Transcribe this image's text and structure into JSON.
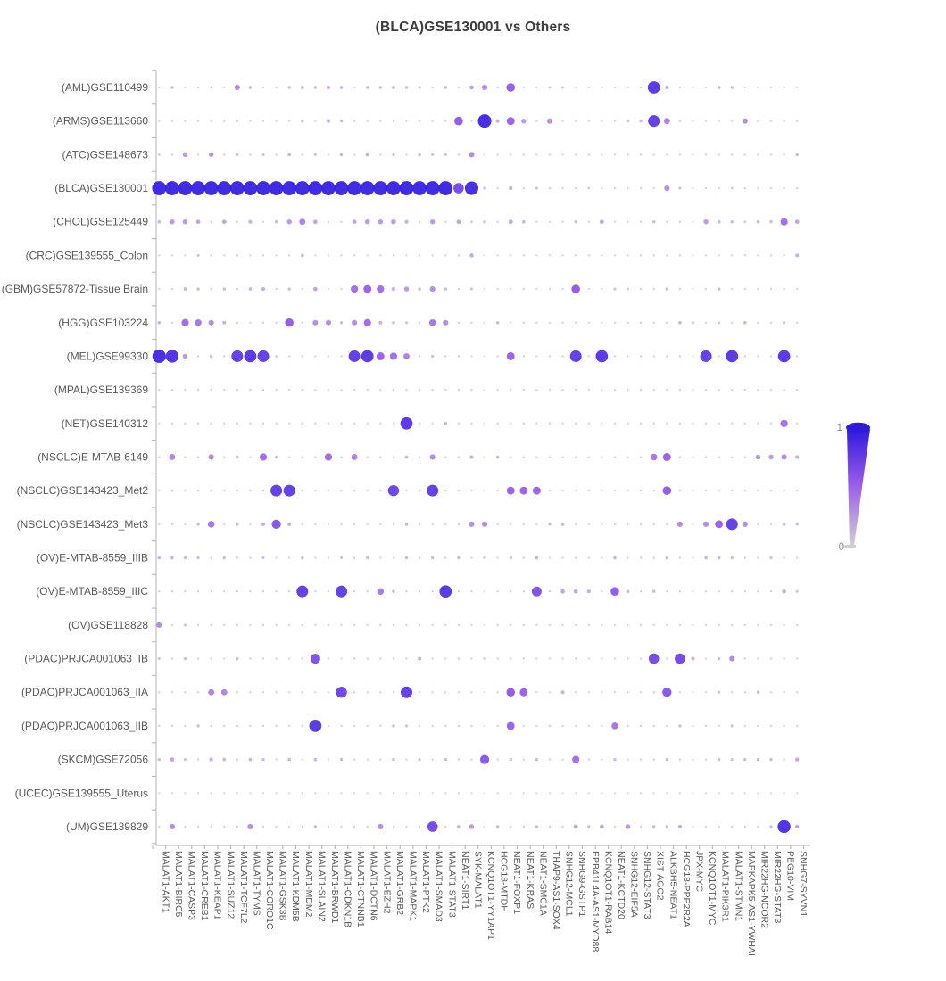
{
  "title": "(BLCA)GSE130001 vs Others",
  "legend": {
    "max_label": "1",
    "min_label": "0"
  },
  "chart_data": {
    "type": "scatter",
    "subtype": "bubble-matrix",
    "title": "(BLCA)GSE130001 vs Others",
    "xlabel": "",
    "ylabel": "",
    "value_range": [
      0,
      1
    ],
    "legend_position": "right",
    "grid": false,
    "highlighted_y": "(BLCA)GSE130001",
    "highlight_color": "#e32222",
    "colors": {
      "scale_low": "#d3cdd9",
      "scale_mid": "#9658e8",
      "scale_high": "#301ade",
      "axis": "#b0b0b0",
      "label": "#595959",
      "title": "#3d3d3d"
    },
    "y_categories": [
      "(AML)GSE110499",
      "(ARMS)GSE113660",
      "(ATC)GSE148673",
      "(BLCA)GSE130001",
      "(CHOL)GSE125449",
      "(CRC)GSE139555_Colon",
      "(GBM)GSE57872-Tissue Brain",
      "(HGG)GSE103224",
      "(MEL)GSE99330",
      "(MPAL)GSE139369",
      "(NET)GSE140312",
      "(NSCLC)E-MTAB-6149",
      "(NSCLC)GSE143423_Met2",
      "(NSCLC)GSE143423_Met3",
      "(OV)E-MTAB-8559_IIIB",
      "(OV)E-MTAB-8559_IIIC",
      "(OV)GSE118828",
      "(PDAC)PRJCA001063_IB",
      "(PDAC)PRJCA001063_IIA",
      "(PDAC)PRJCA001063_IIB",
      "(SKCM)GSE72056",
      "(UCEC)GSE139555_Uterus",
      "(UM)GSE139829"
    ],
    "x_categories": [
      "MALAT1-AKT1",
      "MALAT1-BIRC5",
      "MALAT1-CASP3",
      "MALAT1-CREB1",
      "MALAT1-KEAP1",
      "MALAT1-SUZ12",
      "MALAT1-TCF7L2",
      "MALAT1-TYMS",
      "MALAT1-CORO1C",
      "MALAT1-GSK3B",
      "MALAT1-KDM5B",
      "MALAT1-MDM2",
      "MALAT1-SLAIN2",
      "MALAT1-BRWD1",
      "MALAT1-CDKN1B",
      "MALAT1-CTNNB1",
      "MALAT1-DCTN6",
      "MALAT1-EZH2",
      "MALAT1-GRB2",
      "MALAT1-MAPK1",
      "MALAT1-PTK2",
      "MALAT1-SMAD3",
      "MALAT1-STAT3",
      "NEAT1-SIRT1",
      "SYK-MALAT1",
      "KCNQ1OT1-YY1AP1",
      "HCG18-MTDH",
      "NEAT1-FOXP1",
      "NEAT1-KRAS",
      "NEAT1-SMC1A",
      "THAP9-AS1-SOX4",
      "SNHG12-MCL1",
      "SNHG9-GSTP1",
      "EPB41L4A-AS1-MYD88",
      "KCNQ1OT1-RAB14",
      "NEAT1-KCTD20",
      "SNHG12-EIF5A",
      "SNHG12-STAT3",
      "XIST-AGO2",
      "ALKBH5-NEAT1",
      "HCG18-PPP2R2A",
      "JPX-MYC",
      "KCNQ1OT1-MYC",
      "MALAT1-PIK3R1",
      "MALAT1-STMN1",
      "MAPKAPK5-AS1-YWHAI",
      "MIR22HG-NCOR2",
      "MIR22HG-STAT3",
      "PEG10-VIM",
      "SNHG7-SYVN1"
    ],
    "values": [
      [
        0.02,
        0.1,
        0.02,
        0.02,
        0.05,
        0.02,
        0.3,
        0.1,
        0.02,
        0.02,
        0.1,
        0.12,
        0.1,
        0.15,
        0.12,
        0.02,
        0.1,
        0.1,
        0.12,
        0.1,
        0.08,
        0.02,
        0.1,
        0.02,
        0.2,
        0.3,
        0.02,
        0.55,
        0.02,
        0.02,
        0.08,
        0.08,
        0.02,
        0.02,
        0.02,
        0.02,
        0.02,
        0.02,
        0.85,
        0.15,
        0.02,
        0.02,
        0.02,
        0.12,
        0.1,
        0.02,
        0.02,
        0.02,
        0.02,
        0.02
      ],
      [
        0.02,
        0.02,
        0.02,
        0.02,
        0.02,
        0.02,
        0.02,
        0.02,
        0.02,
        0.02,
        0.02,
        0.08,
        0.02,
        0.15,
        0.1,
        0.02,
        0.02,
        0.02,
        0.02,
        0.02,
        0.02,
        0.02,
        0.02,
        0.55,
        0.02,
        0.95,
        0.15,
        0.5,
        0.25,
        0.02,
        0.3,
        0.02,
        0.02,
        0.02,
        0.02,
        0.02,
        0.08,
        0.1,
        0.8,
        0.35,
        0.02,
        0.02,
        0.02,
        0.02,
        0.02,
        0.3,
        0.02,
        0.02,
        0.02,
        0.02
      ],
      [
        0.05,
        0.02,
        0.25,
        0.02,
        0.25,
        0.02,
        0.08,
        0.02,
        0.08,
        0.02,
        0.12,
        0.02,
        0.08,
        0.02,
        0.12,
        0.02,
        0.15,
        0.02,
        0.08,
        0.02,
        0.1,
        0.08,
        0.08,
        0.02,
        0.3,
        0.02,
        0.02,
        0.02,
        0.02,
        0.02,
        0.02,
        0.02,
        0.02,
        0.02,
        0.02,
        0.02,
        0.02,
        0.02,
        0.02,
        0.02,
        0.02,
        0.02,
        0.02,
        0.02,
        0.02,
        0.02,
        0.02,
        0.02,
        0.02,
        0.1
      ],
      [
        1,
        1,
        1,
        1,
        1,
        1,
        1,
        1,
        1,
        1,
        1,
        1,
        1,
        1,
        1,
        1,
        1,
        1,
        1,
        1,
        1,
        1,
        1,
        0.7,
        0.95,
        0.1,
        0.02,
        0.15,
        0.02,
        0.08,
        0.02,
        0.02,
        0.02,
        0.05,
        0.02,
        0.02,
        0.02,
        0.02,
        0.02,
        0.3,
        0.08,
        0.02,
        0.02,
        0.02,
        0.05,
        0.02,
        0.02,
        0.02,
        0.02,
        0.02
      ],
      [
        0.12,
        0.25,
        0.25,
        0.2,
        0.02,
        0.2,
        0.02,
        0.15,
        0.02,
        0.1,
        0.25,
        0.35,
        0.2,
        0.02,
        0.02,
        0.2,
        0.25,
        0.25,
        0.25,
        0.15,
        0.02,
        0.25,
        0.02,
        0.2,
        0.05,
        0.1,
        0.02,
        0.2,
        0.12,
        0.02,
        0.02,
        0.02,
        0.1,
        0.02,
        0.2,
        0.02,
        0.02,
        0.02,
        0.1,
        0.02,
        0.02,
        0.02,
        0.25,
        0.12,
        0.1,
        0.05,
        0.1,
        0.1,
        0.45,
        0.2
      ],
      [
        0.02,
        0.02,
        0.02,
        0.08,
        0.02,
        0.02,
        0.02,
        0.02,
        0.02,
        0.02,
        0.02,
        0.12,
        0.02,
        0.02,
        0.02,
        0.02,
        0.02,
        0.02,
        0.02,
        0.02,
        0.02,
        0.02,
        0.02,
        0.02,
        0.18,
        0.02,
        0.02,
        0.02,
        0.02,
        0.02,
        0.02,
        0.02,
        0.02,
        0.02,
        0.02,
        0.02,
        0.02,
        0.02,
        0.02,
        0.02,
        0.02,
        0.02,
        0.02,
        0.02,
        0.02,
        0.02,
        0.02,
        0.02,
        0.02,
        0.15
      ],
      [
        0.02,
        0.02,
        0.12,
        0.1,
        0.02,
        0.1,
        0.02,
        0.12,
        0.15,
        0.02,
        0.1,
        0.02,
        0.2,
        0.02,
        0.02,
        0.45,
        0.5,
        0.45,
        0.15,
        0.25,
        0.1,
        0.3,
        0.1,
        0.02,
        0.08,
        0.02,
        0.02,
        0.02,
        0.02,
        0.02,
        0.02,
        0.02,
        0.55,
        0.02,
        0.02,
        0.08,
        0.05,
        0.02,
        0.02,
        0.1,
        0.02,
        0.02,
        0.02,
        0.1,
        0.02,
        0.02,
        0.02,
        0.02,
        0.02,
        0.02
      ],
      [
        0.12,
        0.02,
        0.45,
        0.4,
        0.3,
        0.15,
        0.02,
        0.02,
        0.02,
        0.02,
        0.55,
        0.02,
        0.3,
        0.3,
        0.1,
        0.3,
        0.45,
        0.15,
        0.1,
        0.08,
        0.02,
        0.4,
        0.3,
        0.02,
        0.02,
        0.02,
        0.1,
        0.02,
        0.02,
        0.02,
        0.02,
        0.02,
        0.02,
        0.02,
        0.02,
        0.02,
        0.02,
        0.02,
        0.02,
        0.02,
        0.12,
        0.08,
        0.02,
        0.05,
        0.02,
        0.12,
        0.02,
        0.02,
        0.1,
        0.02
      ],
      [
        0.95,
        0.9,
        0.25,
        0.02,
        0.1,
        0.02,
        0.8,
        0.85,
        0.8,
        0.05,
        0.02,
        0.02,
        0.02,
        0.02,
        0.02,
        0.8,
        0.85,
        0.5,
        0.45,
        0.35,
        0.02,
        0.08,
        0.02,
        0.02,
        0.02,
        0.02,
        0.02,
        0.5,
        0.02,
        0.02,
        0.02,
        0.02,
        0.8,
        0.02,
        0.85,
        0.02,
        0.02,
        0.02,
        0.02,
        0.02,
        0.02,
        0.02,
        0.8,
        0.02,
        0.85,
        0.02,
        0.02,
        0.02,
        0.85,
        0.02
      ],
      [
        0.02,
        0.02,
        0.02,
        0.02,
        0.02,
        0.02,
        0.02,
        0.02,
        0.02,
        0.02,
        0.02,
        0.02,
        0.02,
        0.02,
        0.02,
        0.02,
        0.02,
        0.02,
        0.02,
        0.02,
        0.02,
        0.02,
        0.02,
        0.02,
        0.02,
        0.02,
        0.02,
        0.02,
        0.02,
        0.02,
        0.02,
        0.02,
        0.02,
        0.02,
        0.02,
        0.02,
        0.02,
        0.02,
        0.02,
        0.02,
        0.02,
        0.02,
        0.02,
        0.02,
        0.02,
        0.02,
        0.02,
        0.02,
        0.02,
        0.02
      ],
      [
        0.02,
        0.02,
        0.02,
        0.02,
        0.02,
        0.02,
        0.02,
        0.02,
        0.02,
        0.02,
        0.02,
        0.02,
        0.02,
        0.02,
        0.02,
        0.02,
        0.02,
        0.02,
        0.02,
        0.85,
        0.02,
        0.02,
        0.12,
        0.02,
        0.02,
        0.02,
        0.02,
        0.02,
        0.02,
        0.02,
        0.02,
        0.02,
        0.02,
        0.02,
        0.02,
        0.02,
        0.02,
        0.02,
        0.02,
        0.02,
        0.02,
        0.02,
        0.02,
        0.02,
        0.02,
        0.02,
        0.02,
        0.02,
        0.45,
        0.02
      ],
      [
        0.02,
        0.35,
        0.02,
        0.02,
        0.3,
        0.02,
        0.08,
        0.02,
        0.45,
        0.08,
        0.02,
        0.02,
        0.02,
        0.45,
        0.02,
        0.35,
        0.02,
        0.02,
        0.02,
        0.12,
        0.02,
        0.3,
        0.02,
        0.02,
        0.15,
        0.02,
        0.1,
        0.02,
        0.02,
        0.02,
        0.02,
        0.02,
        0.02,
        0.02,
        0.02,
        0.02,
        0.02,
        0.02,
        0.4,
        0.5,
        0.02,
        0.02,
        0.02,
        0.02,
        0.02,
        0.02,
        0.25,
        0.25,
        0.3,
        0.15
      ],
      [
        0.02,
        0.05,
        0.02,
        0.02,
        0.02,
        0.02,
        0.02,
        0.02,
        0.02,
        0.8,
        0.8,
        0.02,
        0.02,
        0.02,
        0.02,
        0.02,
        0.02,
        0.02,
        0.75,
        0.02,
        0.02,
        0.8,
        0.02,
        0.02,
        0.02,
        0.02,
        0.02,
        0.5,
        0.5,
        0.5,
        0.02,
        0.02,
        0.02,
        0.02,
        0.02,
        0.02,
        0.02,
        0.02,
        0.02,
        0.55,
        0.02,
        0.02,
        0.02,
        0.02,
        0.02,
        0.02,
        0.02,
        0.02,
        0.02,
        0.02
      ],
      [
        0.02,
        0.02,
        0.02,
        0.1,
        0.4,
        0.02,
        0.1,
        0.02,
        0.15,
        0.6,
        0.15,
        0.02,
        0.02,
        0.02,
        0.02,
        0.02,
        0.02,
        0.02,
        0.02,
        0.12,
        0.02,
        0.02,
        0.02,
        0.02,
        0.3,
        0.3,
        0.02,
        0.02,
        0.02,
        0.02,
        0.1,
        0.12,
        0.02,
        0.02,
        0.02,
        0.02,
        0.02,
        0.02,
        0.02,
        0.02,
        0.3,
        0.02,
        0.3,
        0.5,
        0.8,
        0.3,
        0.02,
        0.02,
        0.12,
        0.1
      ],
      [
        0.12,
        0.12,
        0.1,
        0.1,
        0.02,
        0.1,
        0.02,
        0.02,
        0.08,
        0.02,
        0.02,
        0.1,
        0.02,
        0.02,
        0.08,
        0.02,
        0.1,
        0.02,
        0.02,
        0.1,
        0.02,
        0.1,
        0.02,
        0.1,
        0.02,
        0.08,
        0.02,
        0.1,
        0.02,
        0.12,
        0.02,
        0.02,
        0.02,
        0.02,
        0.02,
        0.12,
        0.02,
        0.02,
        0.02,
        0.1,
        0.02,
        0.02,
        0.12,
        0.12,
        0.1,
        0.02,
        0.02,
        0.08,
        0.02,
        0.02
      ],
      [
        0.02,
        0.02,
        0.02,
        0.02,
        0.02,
        0.02,
        0.02,
        0.02,
        0.02,
        0.02,
        0.02,
        0.8,
        0.02,
        0.02,
        0.8,
        0.02,
        0.02,
        0.4,
        0.1,
        0.02,
        0.02,
        0.02,
        0.85,
        0.02,
        0.02,
        0.02,
        0.02,
        0.02,
        0.02,
        0.65,
        0.02,
        0.2,
        0.2,
        0.15,
        0.02,
        0.55,
        0.12,
        0.02,
        0.1,
        0.02,
        0.02,
        0.02,
        0.02,
        0.02,
        0.02,
        0.02,
        0.02,
        0.02,
        0.18,
        0.08
      ],
      [
        0.3,
        0.02,
        0.08,
        0.02,
        0.02,
        0.02,
        0.02,
        0.02,
        0.02,
        0.02,
        0.02,
        0.02,
        0.02,
        0.02,
        0.02,
        0.02,
        0.02,
        0.02,
        0.02,
        0.02,
        0.02,
        0.02,
        0.02,
        0.02,
        0.02,
        0.02,
        0.02,
        0.02,
        0.02,
        0.02,
        0.02,
        0.02,
        0.02,
        0.02,
        0.02,
        0.02,
        0.02,
        0.02,
        0.02,
        0.02,
        0.02,
        0.02,
        0.02,
        0.02,
        0.02,
        0.02,
        0.02,
        0.02,
        0.02,
        0.02
      ],
      [
        0.08,
        0.02,
        0.1,
        0.02,
        0.02,
        0.02,
        0.1,
        0.02,
        0.02,
        0.02,
        0.02,
        0.02,
        0.65,
        0.02,
        0.02,
        0.02,
        0.02,
        0.02,
        0.02,
        0.02,
        0.15,
        0.02,
        0.02,
        0.02,
        0.02,
        0.08,
        0.02,
        0.02,
        0.02,
        0.02,
        0.02,
        0.02,
        0.02,
        0.02,
        0.02,
        0.02,
        0.02,
        0.02,
        0.7,
        0.02,
        0.7,
        0.15,
        0.02,
        0.1,
        0.3,
        0.02,
        0.02,
        0.02,
        0.02,
        0.02
      ],
      [
        0.02,
        0.02,
        0.02,
        0.02,
        0.35,
        0.35,
        0.02,
        0.02,
        0.02,
        0.02,
        0.02,
        0.02,
        0.02,
        0.02,
        0.75,
        0.02,
        0.02,
        0.02,
        0.02,
        0.8,
        0.02,
        0.02,
        0.02,
        0.02,
        0.02,
        0.02,
        0.02,
        0.55,
        0.5,
        0.02,
        0.02,
        0.15,
        0.02,
        0.02,
        0.02,
        0.02,
        0.02,
        0.02,
        0.02,
        0.6,
        0.02,
        0.02,
        0.02,
        0.08,
        0.02,
        0.02,
        0.1,
        0.02,
        0.02,
        0.02
      ],
      [
        0.02,
        0.02,
        0.02,
        0.1,
        0.02,
        0.02,
        0.02,
        0.02,
        0.02,
        0.02,
        0.02,
        0.02,
        0.85,
        0.02,
        0.02,
        0.02,
        0.02,
        0.02,
        0.1,
        0.08,
        0.02,
        0.02,
        0.02,
        0.02,
        0.02,
        0.02,
        0.02,
        0.5,
        0.02,
        0.02,
        0.02,
        0.02,
        0.02,
        0.02,
        0.02,
        0.4,
        0.02,
        0.02,
        0.02,
        0.02,
        0.1,
        0.02,
        0.02,
        0.02,
        0.08,
        0.02,
        0.02,
        0.02,
        0.02,
        0.02
      ],
      [
        0.1,
        0.2,
        0.08,
        0.02,
        0.15,
        0.12,
        0.02,
        0.12,
        0.1,
        0.02,
        0.12,
        0.02,
        0.12,
        0.02,
        0.1,
        0.02,
        0.02,
        0.02,
        0.1,
        0.02,
        0.08,
        0.02,
        0.1,
        0.02,
        0.02,
        0.6,
        0.02,
        0.1,
        0.02,
        0.1,
        0.02,
        0.02,
        0.45,
        0.02,
        0.02,
        0.1,
        0.02,
        0.02,
        0.02,
        0.1,
        0.02,
        0.02,
        0.02,
        0.1,
        0.08,
        0.1,
        0.1,
        0.1,
        0.02,
        0.18
      ],
      [
        0.01,
        0.01,
        0.01,
        0.01,
        0.01,
        0.01,
        0.01,
        0.01,
        0.01,
        0.01,
        0.01,
        0.01,
        0.01,
        0.01,
        0.01,
        0.01,
        0.01,
        0.01,
        0.01,
        0.01,
        0.01,
        0.01,
        0.01,
        0.01,
        0.01,
        0.01,
        0.01,
        0.01,
        0.01,
        0.01,
        0.01,
        0.01,
        0.01,
        0.01,
        0.01,
        0.01,
        0.01,
        0.01,
        0.01,
        0.01,
        0.01,
        0.01,
        0.01,
        0.01,
        0.01,
        0.01,
        0.01,
        0.01,
        0.01,
        0.01
      ],
      [
        0.02,
        0.3,
        0.02,
        0.02,
        0.02,
        0.02,
        0.02,
        0.3,
        0.02,
        0.02,
        0.02,
        0.02,
        0.1,
        0.02,
        0.02,
        0.02,
        0.02,
        0.3,
        0.02,
        0.02,
        0.02,
        0.7,
        0.02,
        0.12,
        0.25,
        0.02,
        0.1,
        0.02,
        0.02,
        0.1,
        0.02,
        0.02,
        0.2,
        0.1,
        0.2,
        0.02,
        0.25,
        0.02,
        0.1,
        0.1,
        0.15,
        0.02,
        0.02,
        0.02,
        0.02,
        0.02,
        0.02,
        0.1,
        0.9,
        0.18
      ]
    ]
  }
}
